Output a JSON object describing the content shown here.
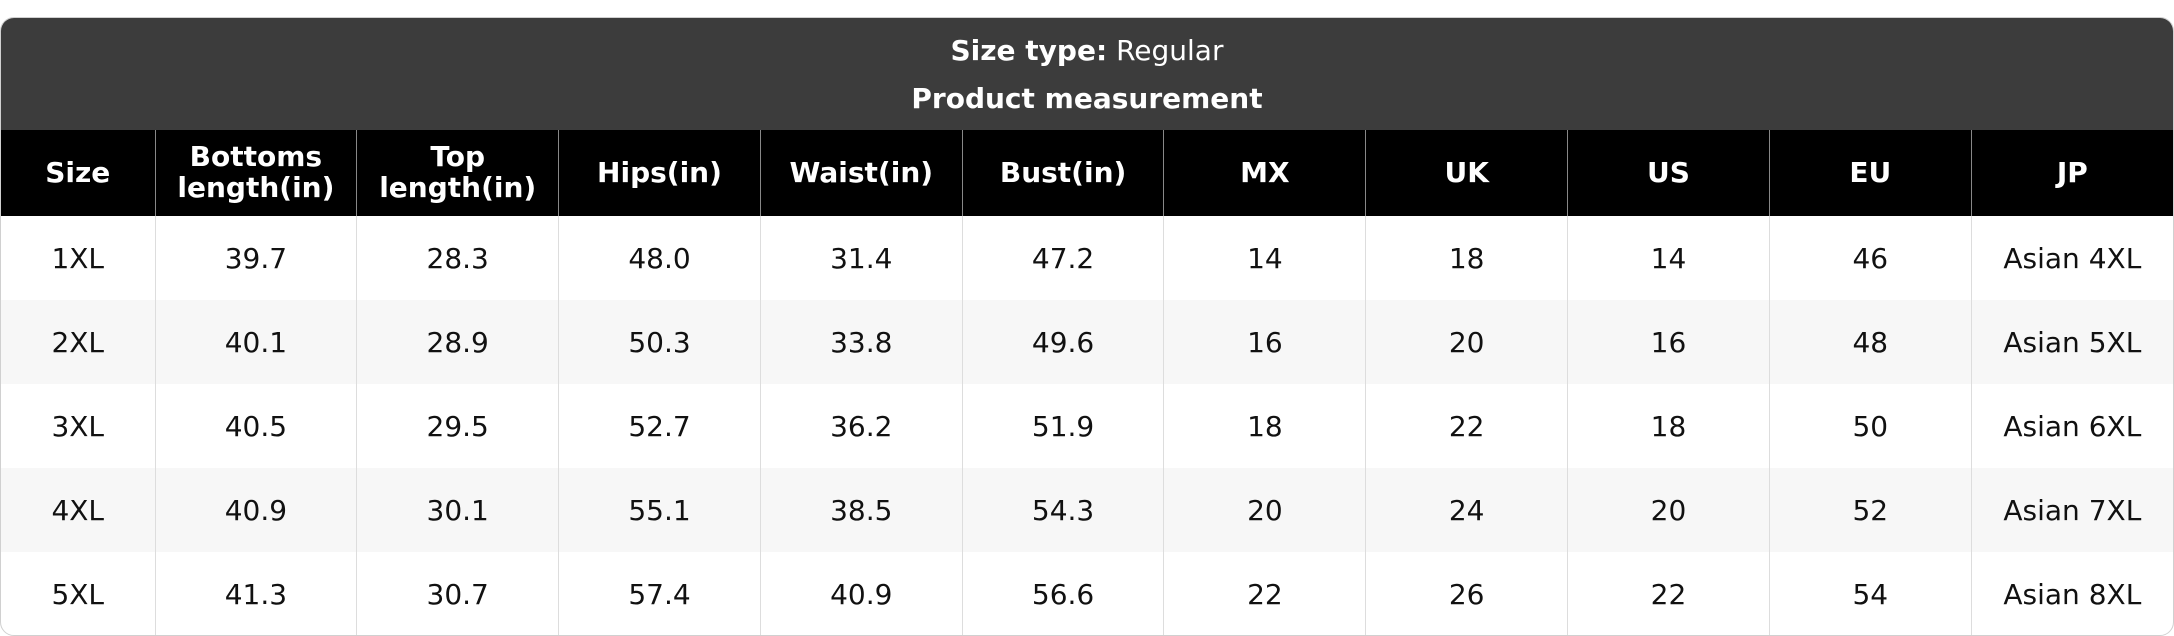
{
  "header": {
    "size_type_label": "Size type:",
    "size_type_value": "Regular",
    "title": "Product measurement"
  },
  "table": {
    "columns": [
      "Size",
      "Bottoms length(in)",
      "Top length(in)",
      "Hips(in)",
      "Waist(in)",
      "Bust(in)",
      "MX",
      "UK",
      "US",
      "EU",
      "JP"
    ],
    "rows": [
      [
        "1XL",
        "39.7",
        "28.3",
        "48.0",
        "31.4",
        "47.2",
        "14",
        "18",
        "14",
        "46",
        "Asian 4XL"
      ],
      [
        "2XL",
        "40.1",
        "28.9",
        "50.3",
        "33.8",
        "49.6",
        "16",
        "20",
        "16",
        "48",
        "Asian 5XL"
      ],
      [
        "3XL",
        "40.5",
        "29.5",
        "52.7",
        "36.2",
        "51.9",
        "18",
        "22",
        "18",
        "50",
        "Asian 6XL"
      ],
      [
        "4XL",
        "40.9",
        "30.1",
        "55.1",
        "38.5",
        "54.3",
        "20",
        "24",
        "20",
        "52",
        "Asian 7XL"
      ],
      [
        "5XL",
        "41.3",
        "30.7",
        "57.4",
        "40.9",
        "56.6",
        "22",
        "26",
        "22",
        "54",
        "Asian 8XL"
      ]
    ]
  }
}
